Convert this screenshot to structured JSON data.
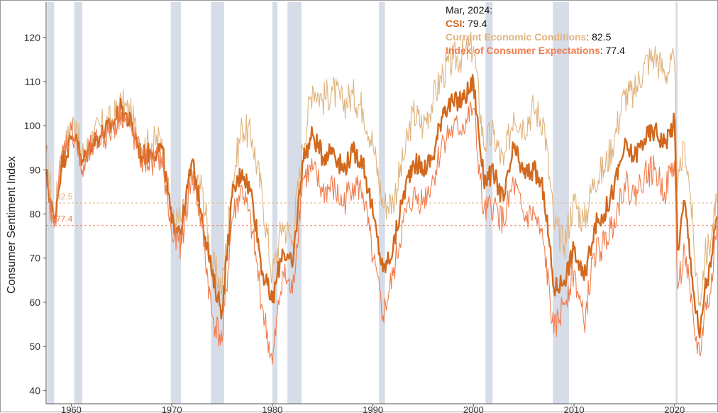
{
  "chart_data": {
    "type": "line",
    "ylabel": "Consumer Sentiment Index",
    "xlabel": "",
    "title": "",
    "xlim": [
      1957.5,
      2024.25
    ],
    "ylim": [
      37,
      128
    ],
    "x_ticks": [
      1960,
      1970,
      1980,
      1990,
      2000,
      2010,
      2020
    ],
    "y_ticks": [
      40,
      50,
      60,
      70,
      80,
      90,
      100,
      110,
      120
    ],
    "recessions": [
      [
        1957.6,
        1958.3
      ],
      [
        1960.3,
        1961.1
      ],
      [
        1969.9,
        1970.9
      ],
      [
        1973.9,
        1975.2
      ],
      [
        1980.0,
        1980.5
      ],
      [
        1981.5,
        1982.9
      ],
      [
        1990.6,
        1991.2
      ],
      [
        2001.2,
        2001.9
      ],
      [
        2007.9,
        2009.5
      ],
      [
        2020.1,
        2020.3
      ]
    ],
    "reference_lines": [
      {
        "value": 82.5,
        "label": "82.5",
        "color": "#e0b47f"
      },
      {
        "value": 77.4,
        "label": "77.4",
        "color": "#f07c4c"
      }
    ],
    "tooltip": {
      "date": "Mar, 2024:",
      "entries": [
        {
          "name": "CSI",
          "value": "79.4",
          "color": "#d2691e"
        },
        {
          "name": "Current Economic Conditions",
          "value": "82.5",
          "color": "#e0b47f"
        },
        {
          "name": "Index of Consumer Expectations",
          "value": "77.4",
          "color": "#f07c4c"
        }
      ]
    },
    "series": [
      {
        "name": "Current Economic Conditions",
        "color": "#e0b47f",
        "points": [
          [
            1957.5,
            94
          ],
          [
            1958.3,
            79
          ],
          [
            1959,
            92
          ],
          [
            1960,
            100
          ],
          [
            1960.5,
            101
          ],
          [
            1961,
            92
          ],
          [
            1962,
            97
          ],
          [
            1963,
            100
          ],
          [
            1964,
            101
          ],
          [
            1965,
            105
          ],
          [
            1966,
            102
          ],
          [
            1967,
            95
          ],
          [
            1968,
            96
          ],
          [
            1969,
            97
          ],
          [
            1970,
            78
          ],
          [
            1971,
            79
          ],
          [
            1972,
            89
          ],
          [
            1973,
            86
          ],
          [
            1974,
            69
          ],
          [
            1975,
            63
          ],
          [
            1976,
            87
          ],
          [
            1977,
            100
          ],
          [
            1978,
            97
          ],
          [
            1979,
            84
          ],
          [
            1980,
            66
          ],
          [
            1981,
            78
          ],
          [
            1982,
            74
          ],
          [
            1983,
            95
          ],
          [
            1984,
            109
          ],
          [
            1985,
            106
          ],
          [
            1986,
            108
          ],
          [
            1987,
            105
          ],
          [
            1988,
            107
          ],
          [
            1989,
            104
          ],
          [
            1990,
            96
          ],
          [
            1991,
            82
          ],
          [
            1992,
            83
          ],
          [
            1993,
            92
          ],
          [
            1994,
            103
          ],
          [
            1995,
            100
          ],
          [
            1996,
            106
          ],
          [
            1997,
            112
          ],
          [
            1998,
            115
          ],
          [
            1999,
            116
          ],
          [
            2000,
            118
          ],
          [
            2001,
            96
          ],
          [
            2002,
            98
          ],
          [
            2003,
            91
          ],
          [
            2004,
            103
          ],
          [
            2005,
            100
          ],
          [
            2006,
            104
          ],
          [
            2007,
            101
          ],
          [
            2008,
            78
          ],
          [
            2009,
            73
          ],
          [
            2010,
            83
          ],
          [
            2011,
            78
          ],
          [
            2012,
            88
          ],
          [
            2013,
            90
          ],
          [
            2014,
            97
          ],
          [
            2015,
            107
          ],
          [
            2016,
            107
          ],
          [
            2017,
            114
          ],
          [
            2018,
            116
          ],
          [
            2019,
            112
          ],
          [
            2020,
            114
          ],
          [
            2020.3,
            85
          ],
          [
            2021,
            96
          ],
          [
            2021.6,
            84
          ],
          [
            2022,
            70
          ],
          [
            2022.5,
            60
          ],
          [
            2023,
            70
          ],
          [
            2023.6,
            74
          ],
          [
            2024.2,
            82.5
          ]
        ]
      },
      {
        "name": "CSI",
        "color": "#d2691e",
        "points": [
          [
            1957.5,
            89
          ],
          [
            1958.3,
            78
          ],
          [
            1959,
            91
          ],
          [
            1960,
            97
          ],
          [
            1960.5,
            98
          ],
          [
            1961,
            91
          ],
          [
            1962,
            96
          ],
          [
            1963,
            98
          ],
          [
            1964,
            100
          ],
          [
            1965,
            104
          ],
          [
            1966,
            100
          ],
          [
            1967,
            93
          ],
          [
            1968,
            94
          ],
          [
            1969,
            95
          ],
          [
            1970,
            78
          ],
          [
            1971,
            77
          ],
          [
            1972,
            92
          ],
          [
            1973,
            80
          ],
          [
            1974,
            66
          ],
          [
            1975,
            58
          ],
          [
            1976,
            84
          ],
          [
            1977,
            90
          ],
          [
            1978,
            84
          ],
          [
            1979,
            67
          ],
          [
            1980,
            60
          ],
          [
            1981,
            72
          ],
          [
            1982,
            68
          ],
          [
            1983,
            92
          ],
          [
            1984,
            98
          ],
          [
            1985,
            93
          ],
          [
            1986,
            95
          ],
          [
            1987,
            90
          ],
          [
            1988,
            94
          ],
          [
            1989,
            92
          ],
          [
            1990,
            80
          ],
          [
            1991,
            67
          ],
          [
            1992,
            72
          ],
          [
            1993,
            84
          ],
          [
            1994,
            92
          ],
          [
            1995,
            90
          ],
          [
            1996,
            93
          ],
          [
            1997,
            104
          ],
          [
            1998,
            105
          ],
          [
            1999,
            106
          ],
          [
            2000,
            110
          ],
          [
            2001,
            88
          ],
          [
            2002,
            89
          ],
          [
            2003,
            83
          ],
          [
            2004,
            95
          ],
          [
            2005,
            89
          ],
          [
            2006,
            90
          ],
          [
            2007,
            85
          ],
          [
            2008,
            63
          ],
          [
            2009,
            65
          ],
          [
            2010,
            72
          ],
          [
            2011,
            65
          ],
          [
            2012,
            77
          ],
          [
            2013,
            80
          ],
          [
            2014,
            86
          ],
          [
            2015,
            95
          ],
          [
            2016,
            93
          ],
          [
            2017,
            97
          ],
          [
            2018,
            99
          ],
          [
            2019,
            96
          ],
          [
            2020,
            101
          ],
          [
            2020.3,
            72
          ],
          [
            2021,
            83
          ],
          [
            2021.6,
            70
          ],
          [
            2022,
            60
          ],
          [
            2022.5,
            52
          ],
          [
            2023,
            63
          ],
          [
            2023.6,
            68
          ],
          [
            2024.2,
            79.4
          ]
        ]
      },
      {
        "name": "Index of Consumer Expectations",
        "color": "#f07c4c",
        "points": [
          [
            1957.5,
            86
          ],
          [
            1958.3,
            77
          ],
          [
            1959,
            93
          ],
          [
            1960,
            99
          ],
          [
            1960.5,
            97
          ],
          [
            1961,
            89
          ],
          [
            1962,
            95
          ],
          [
            1963,
            97
          ],
          [
            1964,
            99
          ],
          [
            1965,
            103
          ],
          [
            1966,
            99
          ],
          [
            1967,
            92
          ],
          [
            1968,
            92
          ],
          [
            1969,
            93
          ],
          [
            1970,
            75
          ],
          [
            1971,
            73
          ],
          [
            1972,
            90
          ],
          [
            1973,
            77
          ],
          [
            1974,
            57
          ],
          [
            1975,
            51
          ],
          [
            1976,
            79
          ],
          [
            1977,
            86
          ],
          [
            1978,
            76
          ],
          [
            1979,
            59
          ],
          [
            1980,
            46
          ],
          [
            1981,
            67
          ],
          [
            1982,
            62
          ],
          [
            1983,
            88
          ],
          [
            1984,
            90
          ],
          [
            1985,
            85
          ],
          [
            1986,
            86
          ],
          [
            1987,
            82
          ],
          [
            1988,
            87
          ],
          [
            1989,
            85
          ],
          [
            1990,
            70
          ],
          [
            1991,
            57
          ],
          [
            1992,
            66
          ],
          [
            1993,
            78
          ],
          [
            1994,
            84
          ],
          [
            1995,
            83
          ],
          [
            1996,
            88
          ],
          [
            1997,
            97
          ],
          [
            1998,
            99
          ],
          [
            1999,
            100
          ],
          [
            2000,
            104
          ],
          [
            2001,
            80
          ],
          [
            2002,
            82
          ],
          [
            2003,
            78
          ],
          [
            2004,
            87
          ],
          [
            2005,
            79
          ],
          [
            2006,
            80
          ],
          [
            2007,
            73
          ],
          [
            2008,
            53
          ],
          [
            2009,
            60
          ],
          [
            2010,
            67
          ],
          [
            2011,
            55
          ],
          [
            2012,
            71
          ],
          [
            2013,
            73
          ],
          [
            2014,
            79
          ],
          [
            2015,
            87
          ],
          [
            2016,
            84
          ],
          [
            2017,
            89
          ],
          [
            2018,
            90
          ],
          [
            2019,
            85
          ],
          [
            2020,
            92
          ],
          [
            2020.3,
            63
          ],
          [
            2021,
            72
          ],
          [
            2021.6,
            60
          ],
          [
            2022,
            53
          ],
          [
            2022.5,
            48
          ],
          [
            2023,
            58
          ],
          [
            2023.6,
            62
          ],
          [
            2024.2,
            77.4
          ]
        ]
      }
    ]
  }
}
